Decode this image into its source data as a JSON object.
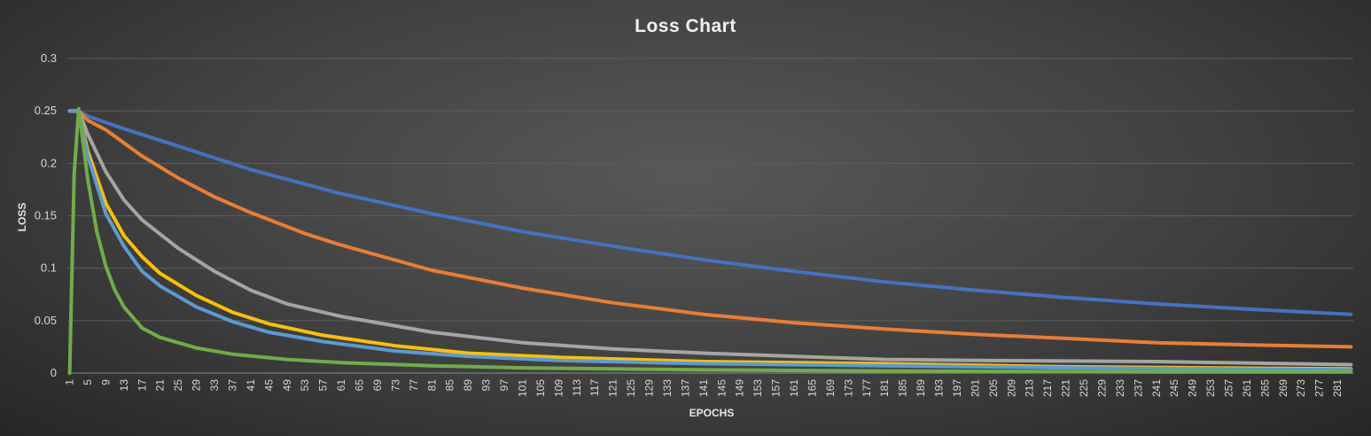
{
  "chart_data": {
    "type": "line",
    "title": "Loss Chart",
    "xlabel": "EPOCHS",
    "ylabel": "LOSS",
    "ylim": [
      0,
      0.3
    ],
    "yticks": [
      "0",
      "0.05",
      "0.1",
      "0.15",
      "0.2",
      "0.25",
      "0.3"
    ],
    "x_tick_start": 1,
    "x_tick_step": 4,
    "x_tick_end": 281,
    "x_range": [
      1,
      284
    ],
    "grid": "horizontal",
    "legend": "none",
    "series": [
      {
        "color": "#4472C4",
        "values": [
          [
            1,
            0.25
          ],
          [
            3,
            0.25
          ],
          [
            5,
            0.245
          ],
          [
            13,
            0.233
          ],
          [
            21,
            0.222
          ],
          [
            41,
            0.194
          ],
          [
            61,
            0.171
          ],
          [
            81,
            0.152
          ],
          [
            101,
            0.135
          ],
          [
            121,
            0.121
          ],
          [
            141,
            0.108
          ],
          [
            161,
            0.097
          ],
          [
            181,
            0.087
          ],
          [
            201,
            0.079
          ],
          [
            221,
            0.072
          ],
          [
            241,
            0.066
          ],
          [
            261,
            0.061
          ],
          [
            284,
            0.056
          ]
        ]
      },
      {
        "color": "#ED7D31",
        "values": [
          [
            1,
            0.25
          ],
          [
            3,
            0.25
          ],
          [
            5,
            0.241
          ],
          [
            9,
            0.232
          ],
          [
            17,
            0.207
          ],
          [
            25,
            0.186
          ],
          [
            33,
            0.168
          ],
          [
            41,
            0.153
          ],
          [
            53,
            0.133
          ],
          [
            61,
            0.122
          ],
          [
            81,
            0.098
          ],
          [
            101,
            0.081
          ],
          [
            121,
            0.067
          ],
          [
            141,
            0.056
          ],
          [
            161,
            0.048
          ],
          [
            181,
            0.042
          ],
          [
            201,
            0.037
          ],
          [
            221,
            0.033
          ],
          [
            241,
            0.029
          ],
          [
            261,
            0.027
          ],
          [
            284,
            0.025
          ]
        ]
      },
      {
        "color": "#A5A5A5",
        "values": [
          [
            1,
            0.25
          ],
          [
            3,
            0.25
          ],
          [
            5,
            0.228
          ],
          [
            9,
            0.192
          ],
          [
            13,
            0.165
          ],
          [
            17,
            0.146
          ],
          [
            25,
            0.119
          ],
          [
            33,
            0.097
          ],
          [
            41,
            0.079
          ],
          [
            49,
            0.066
          ],
          [
            61,
            0.054
          ],
          [
            81,
            0.039
          ],
          [
            101,
            0.029
          ],
          [
            121,
            0.023
          ],
          [
            141,
            0.019
          ],
          [
            161,
            0.016
          ],
          [
            181,
            0.013
          ],
          [
            201,
            0.012
          ],
          [
            241,
            0.011
          ],
          [
            284,
            0.008
          ]
        ]
      },
      {
        "color": "#FFC000",
        "values": [
          [
            1,
            0.25
          ],
          [
            3,
            0.25
          ],
          [
            5,
            0.212
          ],
          [
            9,
            0.162
          ],
          [
            13,
            0.131
          ],
          [
            17,
            0.111
          ],
          [
            21,
            0.095
          ],
          [
            29,
            0.074
          ],
          [
            37,
            0.058
          ],
          [
            45,
            0.047
          ],
          [
            57,
            0.036
          ],
          [
            73,
            0.026
          ],
          [
            89,
            0.019
          ],
          [
            109,
            0.015
          ],
          [
            141,
            0.011
          ],
          [
            181,
            0.009
          ],
          [
            221,
            0.006
          ],
          [
            284,
            0.004
          ]
        ]
      },
      {
        "color": "#5B9BD5",
        "values": [
          [
            1,
            0.25
          ],
          [
            3,
            0.25
          ],
          [
            5,
            0.207
          ],
          [
            9,
            0.152
          ],
          [
            13,
            0.121
          ],
          [
            17,
            0.097
          ],
          [
            21,
            0.083
          ],
          [
            29,
            0.063
          ],
          [
            37,
            0.049
          ],
          [
            45,
            0.039
          ],
          [
            57,
            0.03
          ],
          [
            73,
            0.021
          ],
          [
            89,
            0.016
          ],
          [
            109,
            0.012
          ],
          [
            141,
            0.009
          ],
          [
            181,
            0.007
          ],
          [
            221,
            0.005
          ],
          [
            284,
            0.003
          ]
        ]
      },
      {
        "color": "#70AD47",
        "values": [
          [
            1,
            0
          ],
          [
            2,
            0.19
          ],
          [
            3,
            0.252
          ],
          [
            5,
            0.185
          ],
          [
            7,
            0.135
          ],
          [
            9,
            0.102
          ],
          [
            11,
            0.079
          ],
          [
            13,
            0.063
          ],
          [
            17,
            0.043
          ],
          [
            21,
            0.034
          ],
          [
            29,
            0.024
          ],
          [
            37,
            0.018
          ],
          [
            49,
            0.013
          ],
          [
            61,
            0.01
          ],
          [
            81,
            0.007
          ],
          [
            101,
            0.005
          ],
          [
            141,
            0.003
          ],
          [
            181,
            0.002
          ],
          [
            241,
            0.001
          ],
          [
            284,
            0.001
          ]
        ]
      }
    ]
  }
}
